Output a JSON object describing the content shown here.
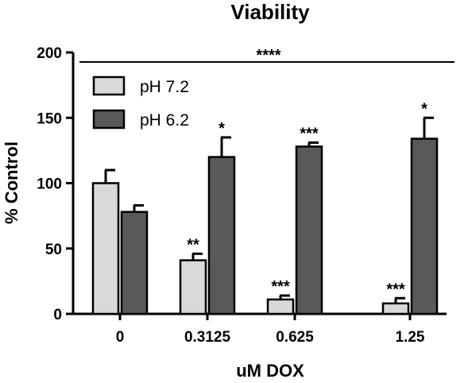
{
  "chart_data": {
    "type": "bar",
    "title": "Viability",
    "xlabel": "uM DOX",
    "ylabel": "% Control",
    "ylim": [
      0,
      200
    ],
    "yticks": [
      0,
      50,
      100,
      150,
      200
    ],
    "categories": [
      "0",
      "0.3125",
      "0.625",
      "1.25"
    ],
    "series": [
      {
        "name": "pH 7.2",
        "color": "#d9d9d9",
        "values": [
          100,
          41,
          11,
          8
        ],
        "errors": [
          10,
          5,
          3,
          4
        ],
        "significance": [
          "",
          "**",
          "***",
          "***"
        ]
      },
      {
        "name": "pH 6.2",
        "color": "#595959",
        "values": [
          78,
          120,
          128,
          134
        ],
        "errors": [
          5,
          15,
          3,
          16
        ],
        "significance": [
          "",
          "*",
          "***",
          "*"
        ]
      }
    ],
    "overall_significance": "****",
    "legend_position": "top-left"
  }
}
